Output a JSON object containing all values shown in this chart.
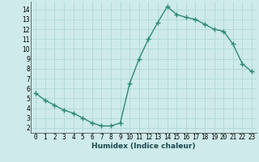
{
  "x": [
    0,
    1,
    2,
    3,
    4,
    5,
    6,
    7,
    8,
    9,
    10,
    11,
    12,
    13,
    14,
    15,
    16,
    17,
    18,
    19,
    20,
    21,
    22,
    23
  ],
  "y": [
    5.5,
    4.8,
    4.3,
    3.8,
    3.5,
    3.0,
    2.5,
    2.2,
    2.2,
    2.5,
    6.5,
    9.0,
    11.0,
    12.7,
    14.3,
    13.5,
    13.2,
    13.0,
    12.5,
    12.0,
    11.8,
    10.5,
    8.5,
    7.7
  ],
  "line_color": "#2e8b72",
  "marker": "+",
  "marker_size": 4,
  "marker_linewidth": 1.0,
  "line_width": 1.0,
  "xlabel": "Humidex (Indice chaleur)",
  "xlim": [
    -0.5,
    23.5
  ],
  "ylim": [
    1.5,
    14.8
  ],
  "bg_color": "#ceeaea",
  "grid_color": "#b0d8d8",
  "xtick_labels": [
    "0",
    "1",
    "2",
    "3",
    "4",
    "5",
    "6",
    "7",
    "8",
    "9",
    "10",
    "11",
    "12",
    "13",
    "14",
    "15",
    "16",
    "17",
    "18",
    "19",
    "20",
    "21",
    "22",
    "23"
  ],
  "ytick_values": [
    2,
    3,
    4,
    5,
    6,
    7,
    8,
    9,
    10,
    11,
    12,
    13,
    14
  ],
  "tick_fontsize": 5.5,
  "xlabel_fontsize": 6.5
}
